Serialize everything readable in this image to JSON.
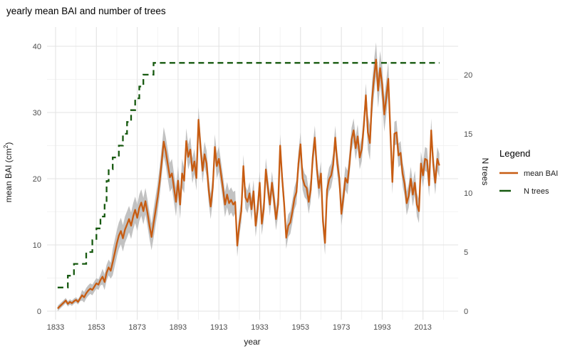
{
  "title": "yearly mean BAI and number of trees",
  "axes": {
    "x": {
      "label": "year",
      "tick_labels": [
        1833,
        1853,
        1873,
        1893,
        1913,
        1933,
        1953,
        1973,
        1993,
        2013
      ],
      "minor_ticks": [
        1843,
        1863,
        1883,
        1903,
        1923,
        1943,
        1963,
        1983,
        2003,
        2023
      ]
    },
    "y_left": {
      "label_main": "mean BAI (cm",
      "label_sup": "2",
      "label_end": ")",
      "ticks": [
        0,
        10,
        20,
        30,
        40
      ],
      "minor_ticks": [
        5,
        15,
        25,
        35
      ]
    },
    "y_right": {
      "label": "N trees",
      "ticks": [
        0,
        5,
        10,
        15,
        20
      ]
    }
  },
  "legend": {
    "title": "Legend",
    "items": [
      {
        "label": "mean BAI",
        "style": "solid"
      },
      {
        "label": "N trees",
        "style": "dashed"
      }
    ]
  },
  "colors": {
    "mean_bai": "#C75C12",
    "n_trees": "#16590F",
    "ribbon": "#C2C2C2",
    "grid_major": "#E3E3E3",
    "grid_minor": "#F0F0F0",
    "tick_text": "#4D4D4D",
    "axis_title_text": "#1a1a1a"
  },
  "chart_data": {
    "type": "line",
    "title": "yearly mean BAI and number of trees",
    "xlabel": "year",
    "ylabel_left": "mean BAI (cm2)",
    "ylabel_right": "N trees",
    "x_range_years": [
      1834,
      2021
    ],
    "ylim_left": [
      0,
      41
    ],
    "ylim_right": [
      0,
      22
    ],
    "right_axis_bai_per_tree": 1.7857,
    "grid": true,
    "legend_position": "right",
    "series": [
      {
        "name": "mean BAI",
        "type": "line_with_ribbon",
        "axis": "left",
        "start_year": 1834,
        "values": [
          0.4,
          0.7,
          1.0,
          1.3,
          1.6,
          1.1,
          1.4,
          1.2,
          1.5,
          1.7,
          1.4,
          1.9,
          2.4,
          2.1,
          2.7,
          3.1,
          3.4,
          3.2,
          3.7,
          4.2,
          4.0,
          4.7,
          5.2,
          4.4,
          5.8,
          6.6,
          6.1,
          7.4,
          8.8,
          10.2,
          11.4,
          12.1,
          11.0,
          12.3,
          13.1,
          13.9,
          12.9,
          14.3,
          15.3,
          14.1,
          15.6,
          16.4,
          15.1,
          16.6,
          14.9,
          12.9,
          11.2,
          13.2,
          15.2,
          17.2,
          19.6,
          22.6,
          25.6,
          24.1,
          22.1,
          20.2,
          20.8,
          18.6,
          16.5,
          19.7,
          16.1,
          20.8,
          19.7,
          25.7,
          23.3,
          24.4,
          21.2,
          22.6,
          20.1,
          28.9,
          24.8,
          21.2,
          23.7,
          22.3,
          18.3,
          15.8,
          18.6,
          24.8,
          21.9,
          23.0,
          20.8,
          18.6,
          16.1,
          17.6,
          16.3,
          16.8,
          16.1,
          16.5,
          9.9,
          13.1,
          15.1,
          21.9,
          17.2,
          16.5,
          17.8,
          15.4,
          18.1,
          12.9,
          15.4,
          19.4,
          13.2,
          15.4,
          21.4,
          18.6,
          16.1,
          19.4,
          16.8,
          13.9,
          16.1,
          25.0,
          20.1,
          16.1,
          11.1,
          12.9,
          13.4,
          15.0,
          17.0,
          18.0,
          22.3,
          25.2,
          20.1,
          19.0,
          18.6,
          16.5,
          18.3,
          23.3,
          26.2,
          21.5,
          18.6,
          20.8,
          13.5,
          10.3,
          18.3,
          19.9,
          20.5,
          22.1,
          26.2,
          22.3,
          20.1,
          14.7,
          17.2,
          20.1,
          19.4,
          22.3,
          25.9,
          27.3,
          24.6,
          26.4,
          23.2,
          24.5,
          28.0,
          32.6,
          27.0,
          25.4,
          31.9,
          35.2,
          38.0,
          33.3,
          36.7,
          34.2,
          29.7,
          32.2,
          35.1,
          27.0,
          19.5,
          26.8,
          27.0,
          23.5,
          23.9,
          20.8,
          19.2,
          16.3,
          17.4,
          20.0,
          17.6,
          19.4,
          16.1,
          15.1,
          22.3,
          20.5,
          23.0,
          22.8,
          19.0,
          27.3,
          22.3,
          19.4,
          23.0,
          22.0
        ],
        "se": [
          0.4,
          0.4,
          0.4,
          0.4,
          0.4,
          0.4,
          0.4,
          0.4,
          0.4,
          0.4,
          0.4,
          0.4,
          0.8,
          0.8,
          0.8,
          0.8,
          0.8,
          0.8,
          0.8,
          0.8,
          0.8,
          0.8,
          1.2,
          1.2,
          1.2,
          1.2,
          1.2,
          2.0,
          2.0,
          2.0,
          2.0,
          2.0,
          2.0,
          2.0,
          2.0,
          2.0,
          2.0,
          2.0,
          2.0,
          2.0,
          2.0,
          2.0,
          2.0,
          2.0,
          2.0,
          2.0,
          2.0,
          2.2,
          2.2,
          2.2,
          2.2,
          2.2,
          2.2,
          2.2,
          2.2,
          2.2,
          2.2,
          2.2,
          2.2,
          2.2,
          2.2,
          2.2,
          1.9,
          1.9,
          1.9,
          1.9,
          1.9,
          1.9,
          1.9,
          1.9,
          1.9,
          1.9,
          1.9,
          1.9,
          1.9,
          1.9,
          1.9,
          1.9,
          1.9,
          1.9,
          1.9,
          1.9,
          1.9,
          1.9,
          1.9,
          1.9,
          1.9,
          1.7,
          1.7,
          1.7,
          1.7,
          1.7,
          1.7,
          1.7,
          1.7,
          1.7,
          1.7,
          1.7,
          1.7,
          1.7,
          1.7,
          1.7,
          1.7,
          1.7,
          1.7,
          1.7,
          1.7,
          1.7,
          1.7,
          1.7,
          1.7,
          1.7,
          1.7,
          1.7,
          1.7,
          1.7,
          1.7,
          1.8,
          1.8,
          1.8,
          1.8,
          1.8,
          1.8,
          1.8,
          1.8,
          1.8,
          1.8,
          1.8,
          1.8,
          1.8,
          1.8,
          1.8,
          1.8,
          1.8,
          1.8,
          1.8,
          1.8,
          1.8,
          1.8,
          1.8,
          1.8,
          1.8,
          1.8,
          1.8,
          1.8,
          1.8,
          1.8,
          1.8,
          1.8,
          1.8,
          1.8,
          1.8,
          2.6,
          2.6,
          2.6,
          2.6,
          2.6,
          2.6,
          2.6,
          2.6,
          2.6,
          2.6,
          2.6,
          1.8,
          1.8,
          1.8,
          1.8,
          1.8,
          1.8,
          1.8,
          1.8,
          1.8,
          1.8,
          1.8,
          1.8,
          1.8,
          1.8,
          1.8,
          1.8,
          1.8,
          1.8,
          1.8,
          1.8,
          1.8,
          1.8,
          1.8,
          1.8,
          1.8
        ]
      },
      {
        "name": "N trees",
        "type": "step",
        "axis": "right",
        "end_year": 2021,
        "steps": [
          [
            1834,
            2
          ],
          [
            1839,
            3
          ],
          [
            1842,
            4
          ],
          [
            1848,
            5
          ],
          [
            1851,
            6
          ],
          [
            1853,
            7
          ],
          [
            1855,
            8
          ],
          [
            1857,
            9
          ],
          [
            1858,
            11
          ],
          [
            1859,
            12
          ],
          [
            1861,
            13
          ],
          [
            1864,
            14
          ],
          [
            1866,
            15
          ],
          [
            1868,
            16
          ],
          [
            1870,
            17
          ],
          [
            1872,
            18
          ],
          [
            1874,
            19
          ],
          [
            1876,
            20
          ],
          [
            1881,
            21
          ]
        ]
      }
    ]
  }
}
